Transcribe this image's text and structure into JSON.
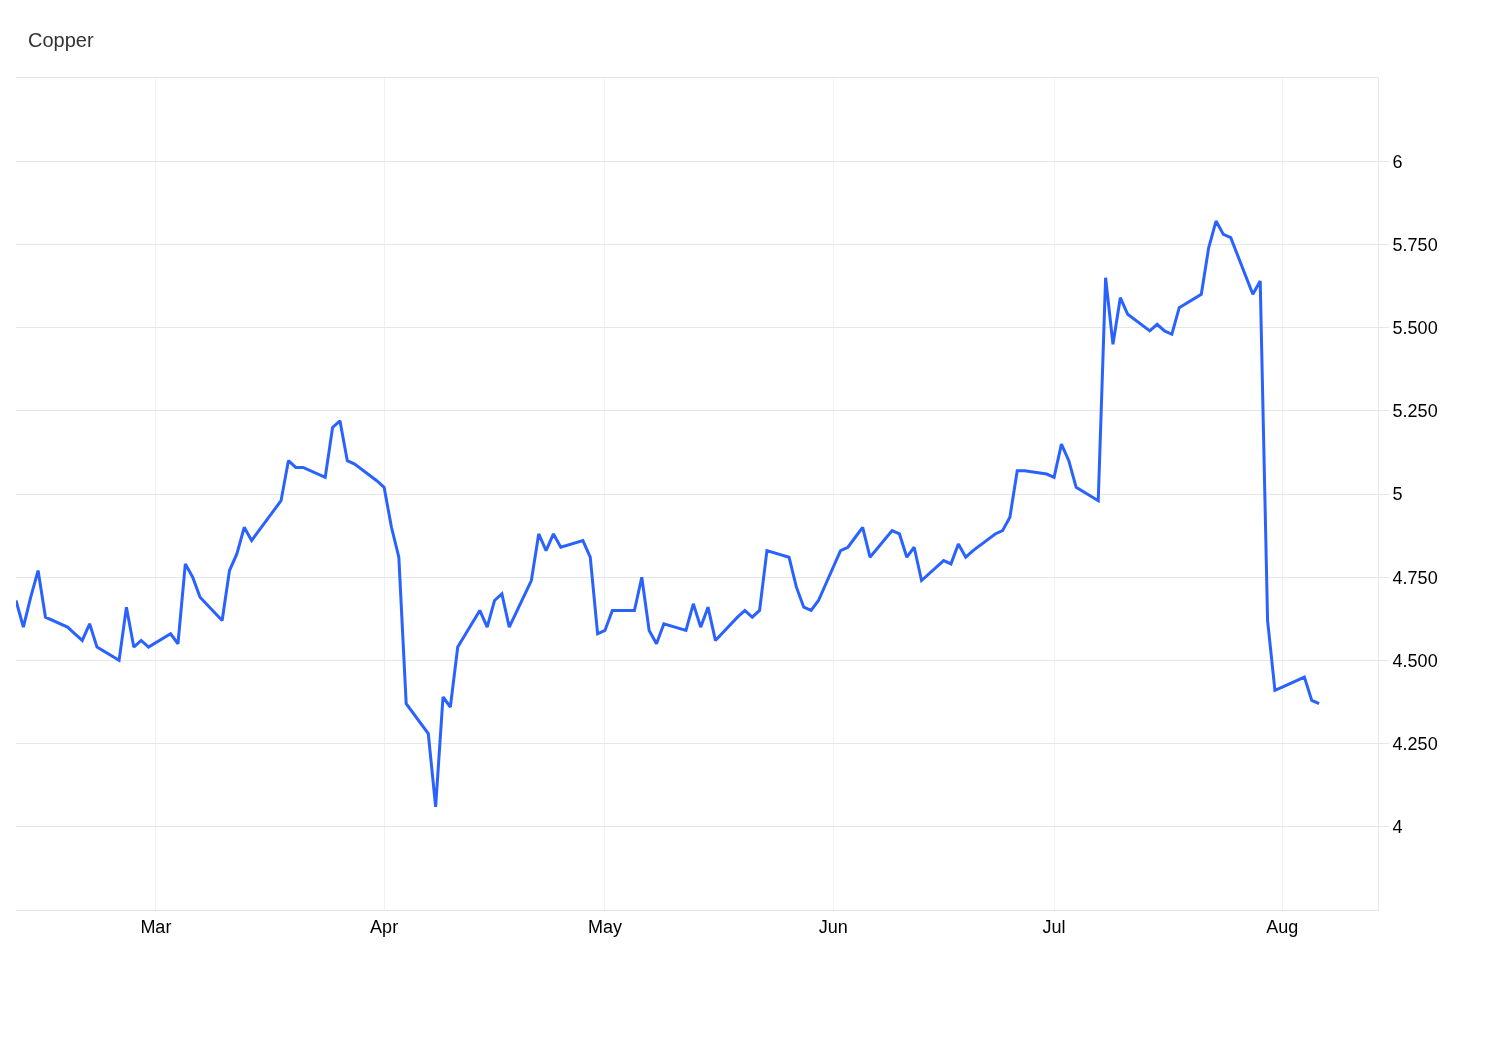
{
  "chart_data": {
    "type": "line",
    "title": "Copper",
    "x": [
      "--02-10",
      "--02-11",
      "--02-12",
      "--02-13",
      "--02-14",
      "--02-17",
      "--02-18",
      "--02-19",
      "--02-20",
      "--02-21",
      "--02-24",
      "--02-25",
      "--02-26",
      "--02-27",
      "--02-28",
      "--03-03",
      "--03-04",
      "--03-05",
      "--03-06",
      "--03-07",
      "--03-10",
      "--03-11",
      "--03-12",
      "--03-13",
      "--03-14",
      "--03-17",
      "--03-18",
      "--03-19",
      "--03-20",
      "--03-21",
      "--03-24",
      "--03-25",
      "--03-26",
      "--03-27",
      "--03-28",
      "--03-31",
      "--04-01",
      "--04-02",
      "--04-03",
      "--04-04",
      "--04-07",
      "--04-08",
      "--04-09",
      "--04-10",
      "--04-11",
      "--04-14",
      "--04-15",
      "--04-16",
      "--04-17",
      "--04-18",
      "--04-21",
      "--04-22",
      "--04-23",
      "--04-24",
      "--04-25",
      "--04-28",
      "--04-29",
      "--04-30",
      "--05-01",
      "--05-02",
      "--05-05",
      "--05-06",
      "--05-07",
      "--05-08",
      "--05-09",
      "--05-12",
      "--05-13",
      "--05-14",
      "--05-15",
      "--05-16",
      "--05-19",
      "--05-20",
      "--05-21",
      "--05-22",
      "--05-23",
      "--05-26",
      "--05-27",
      "--05-28",
      "--05-29",
      "--05-30",
      "--06-02",
      "--06-03",
      "--06-04",
      "--06-05",
      "--06-06",
      "--06-09",
      "--06-10",
      "--06-11",
      "--06-12",
      "--06-13",
      "--06-16",
      "--06-17",
      "--06-18",
      "--06-19",
      "--06-20",
      "--06-23",
      "--06-24",
      "--06-25",
      "--06-26",
      "--06-27",
      "--06-30",
      "--07-01",
      "--07-02",
      "--07-03",
      "--07-04",
      "--07-07",
      "--07-08",
      "--07-09",
      "--07-10",
      "--07-11",
      "--07-14",
      "--07-15",
      "--07-16",
      "--07-17",
      "--07-18",
      "--07-21",
      "--07-22",
      "--07-23",
      "--07-24",
      "--07-25",
      "--07-28",
      "--07-29",
      "--07-30",
      "--07-31",
      "--08-01",
      "--08-04",
      "--08-05",
      "--08-06"
    ],
    "series": [
      {
        "color": "#2962ff",
        "values": [
          4.68,
          4.6,
          4.69,
          4.77,
          4.63,
          4.6,
          4.58,
          4.56,
          4.61,
          4.54,
          4.5,
          4.66,
          4.54,
          4.56,
          4.54,
          4.58,
          4.55,
          4.79,
          4.75,
          4.69,
          4.62,
          4.77,
          4.82,
          4.9,
          4.86,
          4.95,
          4.98,
          5.1,
          5.08,
          5.08,
          5.05,
          5.2,
          5.22,
          5.1,
          5.09,
          5.04,
          5.02,
          4.9,
          4.81,
          4.37,
          4.28,
          4.06,
          4.39,
          4.36,
          4.54,
          4.65,
          4.6,
          4.68,
          4.7,
          4.6,
          4.74,
          4.88,
          4.83,
          4.88,
          4.84,
          4.86,
          4.81,
          4.58,
          4.59,
          4.65,
          4.65,
          4.75,
          4.59,
          4.55,
          4.61,
          4.59,
          4.67,
          4.6,
          4.66,
          4.56,
          4.63,
          4.65,
          4.63,
          4.65,
          4.83,
          4.81,
          4.72,
          4.66,
          4.65,
          4.68,
          4.83,
          4.84,
          4.87,
          4.9,
          4.81,
          4.89,
          4.88,
          4.81,
          4.84,
          4.74,
          4.8,
          4.79,
          4.85,
          4.81,
          4.83,
          4.88,
          4.89,
          4.93,
          5.07,
          5.07,
          5.06,
          5.05,
          5.15,
          5.1,
          5.02,
          4.98,
          5.65,
          5.45,
          5.59,
          5.54,
          5.49,
          5.51,
          5.49,
          5.48,
          5.56,
          5.6,
          5.74,
          5.82,
          5.78,
          5.77,
          5.6,
          5.64,
          4.62,
          4.41,
          4.42,
          4.45,
          4.38,
          4.37
        ]
      }
    ],
    "xlim": [
      "--02-10",
      "--08-14"
    ],
    "xticks": [
      {
        "value": "--03-01",
        "label": "Mar"
      },
      {
        "value": "--04-01",
        "label": "Apr"
      },
      {
        "value": "--05-01",
        "label": "May"
      },
      {
        "value": "--06-01",
        "label": "Jun"
      },
      {
        "value": "--07-01",
        "label": "Jul"
      },
      {
        "value": "--08-01",
        "label": "Aug"
      }
    ],
    "ylim": [
      3.75,
      6.25
    ],
    "yticks": [
      4,
      {
        "value": 4.25,
        "label": "4.250"
      },
      {
        "value": 4.5,
        "label": "4.500"
      },
      {
        "value": 4.75,
        "label": "4.750"
      },
      5,
      {
        "value": 5.25,
        "label": "5.250"
      },
      {
        "value": 5.5,
        "label": "5.500"
      },
      {
        "value": 5.75,
        "label": "5.750"
      },
      6
    ],
    "grid": true,
    "marker": "none",
    "line_style": "solid"
  }
}
